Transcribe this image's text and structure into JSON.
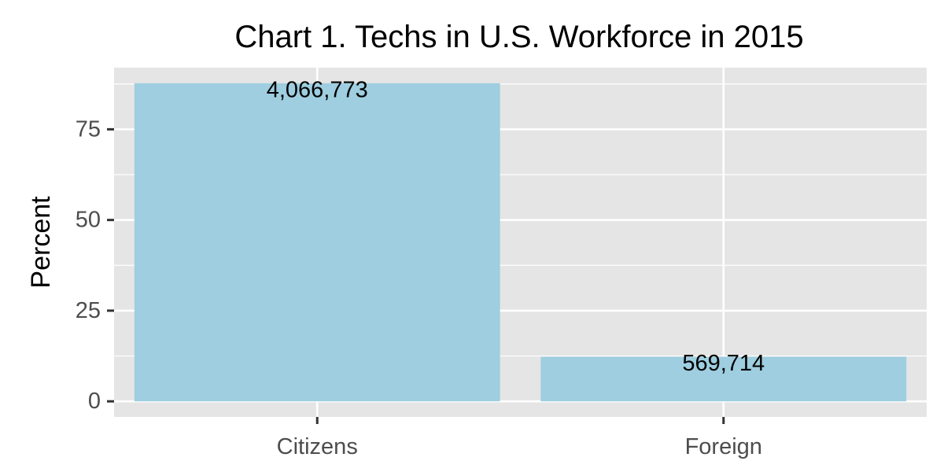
{
  "chart_data": {
    "type": "bar",
    "title": "Chart 1. Techs in U.S. Workforce in 2015",
    "xlabel": "",
    "ylabel": "Percent",
    "categories": [
      "Citizens",
      "Foreign"
    ],
    "values": [
      87.7,
      12.3
    ],
    "data_labels": [
      "4,066,773",
      "569,714"
    ],
    "ylim": [
      -4.3,
      92
    ],
    "yticks": [
      0,
      25,
      50,
      75
    ],
    "ytick_labels": [
      "0",
      "25",
      "50",
      "75"
    ],
    "grid": true,
    "legend": "none",
    "colors": {
      "bar": "#9ecee0",
      "panel": "#e5e5e5",
      "grid": "#ffffff",
      "tick_text": "#4d4d4d",
      "tick_mark": "#333333"
    }
  }
}
